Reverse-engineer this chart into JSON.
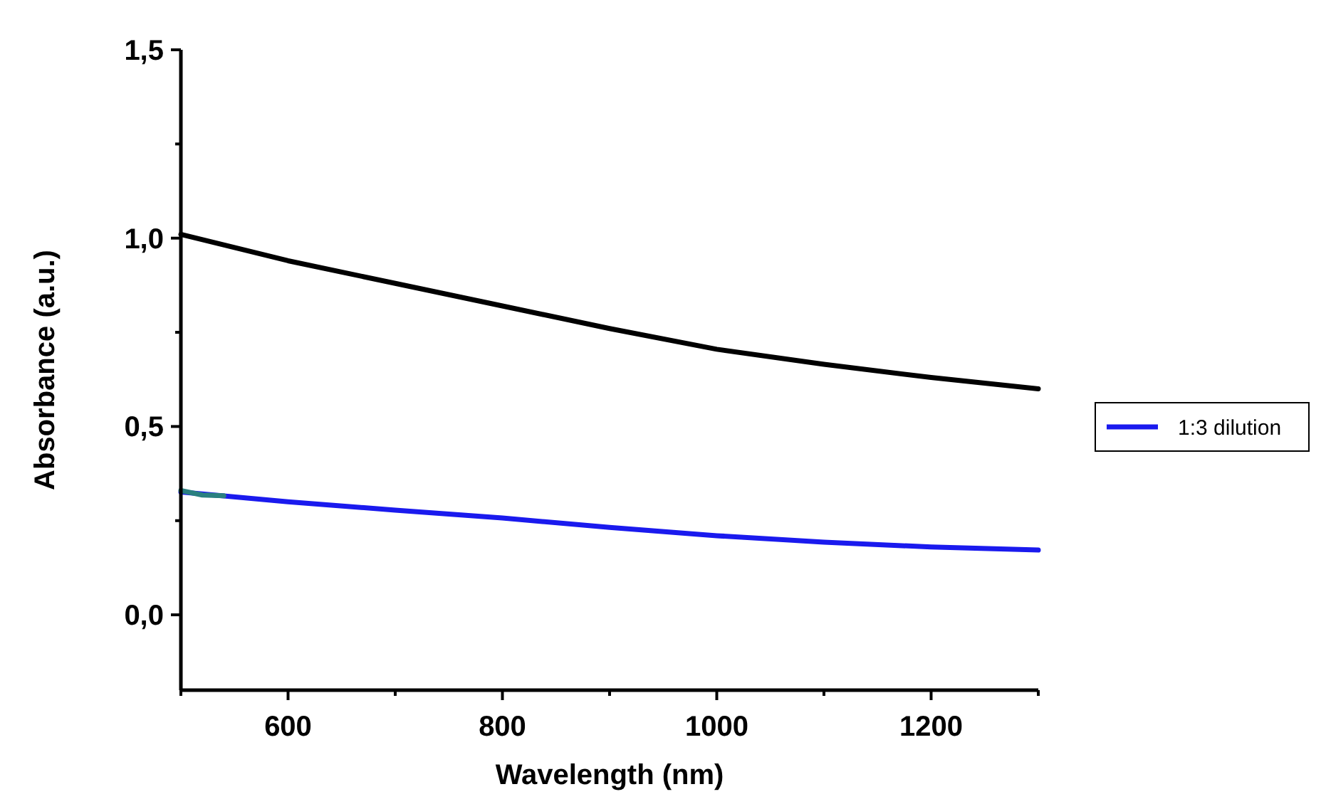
{
  "chart_data": {
    "type": "line",
    "xlabel": "Wavelength (nm)",
    "ylabel": "Absorbance (a.u.)",
    "xlim": [
      500,
      1300
    ],
    "ylim": [
      -0.2,
      1.5
    ],
    "xticks": [
      {
        "value": 500,
        "label": null
      },
      600,
      {
        "value": 700,
        "label": null
      },
      800,
      {
        "value": 900,
        "label": null
      },
      1000,
      {
        "value": 1100,
        "label": null
      },
      1200,
      {
        "value": 1300,
        "label": null
      }
    ],
    "yticks": [
      {
        "value": 0,
        "label": "0,0"
      },
      {
        "value": 0.25,
        "label": null
      },
      {
        "value": 0.5,
        "label": "0,5"
      },
      {
        "value": 0.75,
        "label": null
      },
      {
        "value": 1,
        "label": "1,0"
      },
      {
        "value": 1.25,
        "label": null
      },
      {
        "value": 1.5,
        "label": "1,5"
      }
    ],
    "grid": false,
    "legend": "right",
    "marker": "none",
    "line_style": "solid",
    "series": [
      {
        "color": "#000000",
        "x": [
          500,
          600,
          700,
          800,
          900,
          1000,
          1100,
          1200,
          1300
        ],
        "values": [
          1.01,
          0.94,
          0.88,
          0.82,
          0.76,
          0.705,
          0.665,
          0.63,
          0.6
        ]
      },
      {
        "name": "1:3 dilution",
        "color": "#1a1aee",
        "x": [
          500,
          600,
          700,
          800,
          900,
          1000,
          1100,
          1200,
          1300
        ],
        "values": [
          0.326,
          0.3,
          0.278,
          0.257,
          0.232,
          0.21,
          0.193,
          0.18,
          0.172
        ]
      },
      {
        "color": "#2a8080",
        "x": [
          500,
          520,
          540
        ],
        "values": [
          0.33,
          0.318,
          0.316
        ]
      }
    ]
  }
}
